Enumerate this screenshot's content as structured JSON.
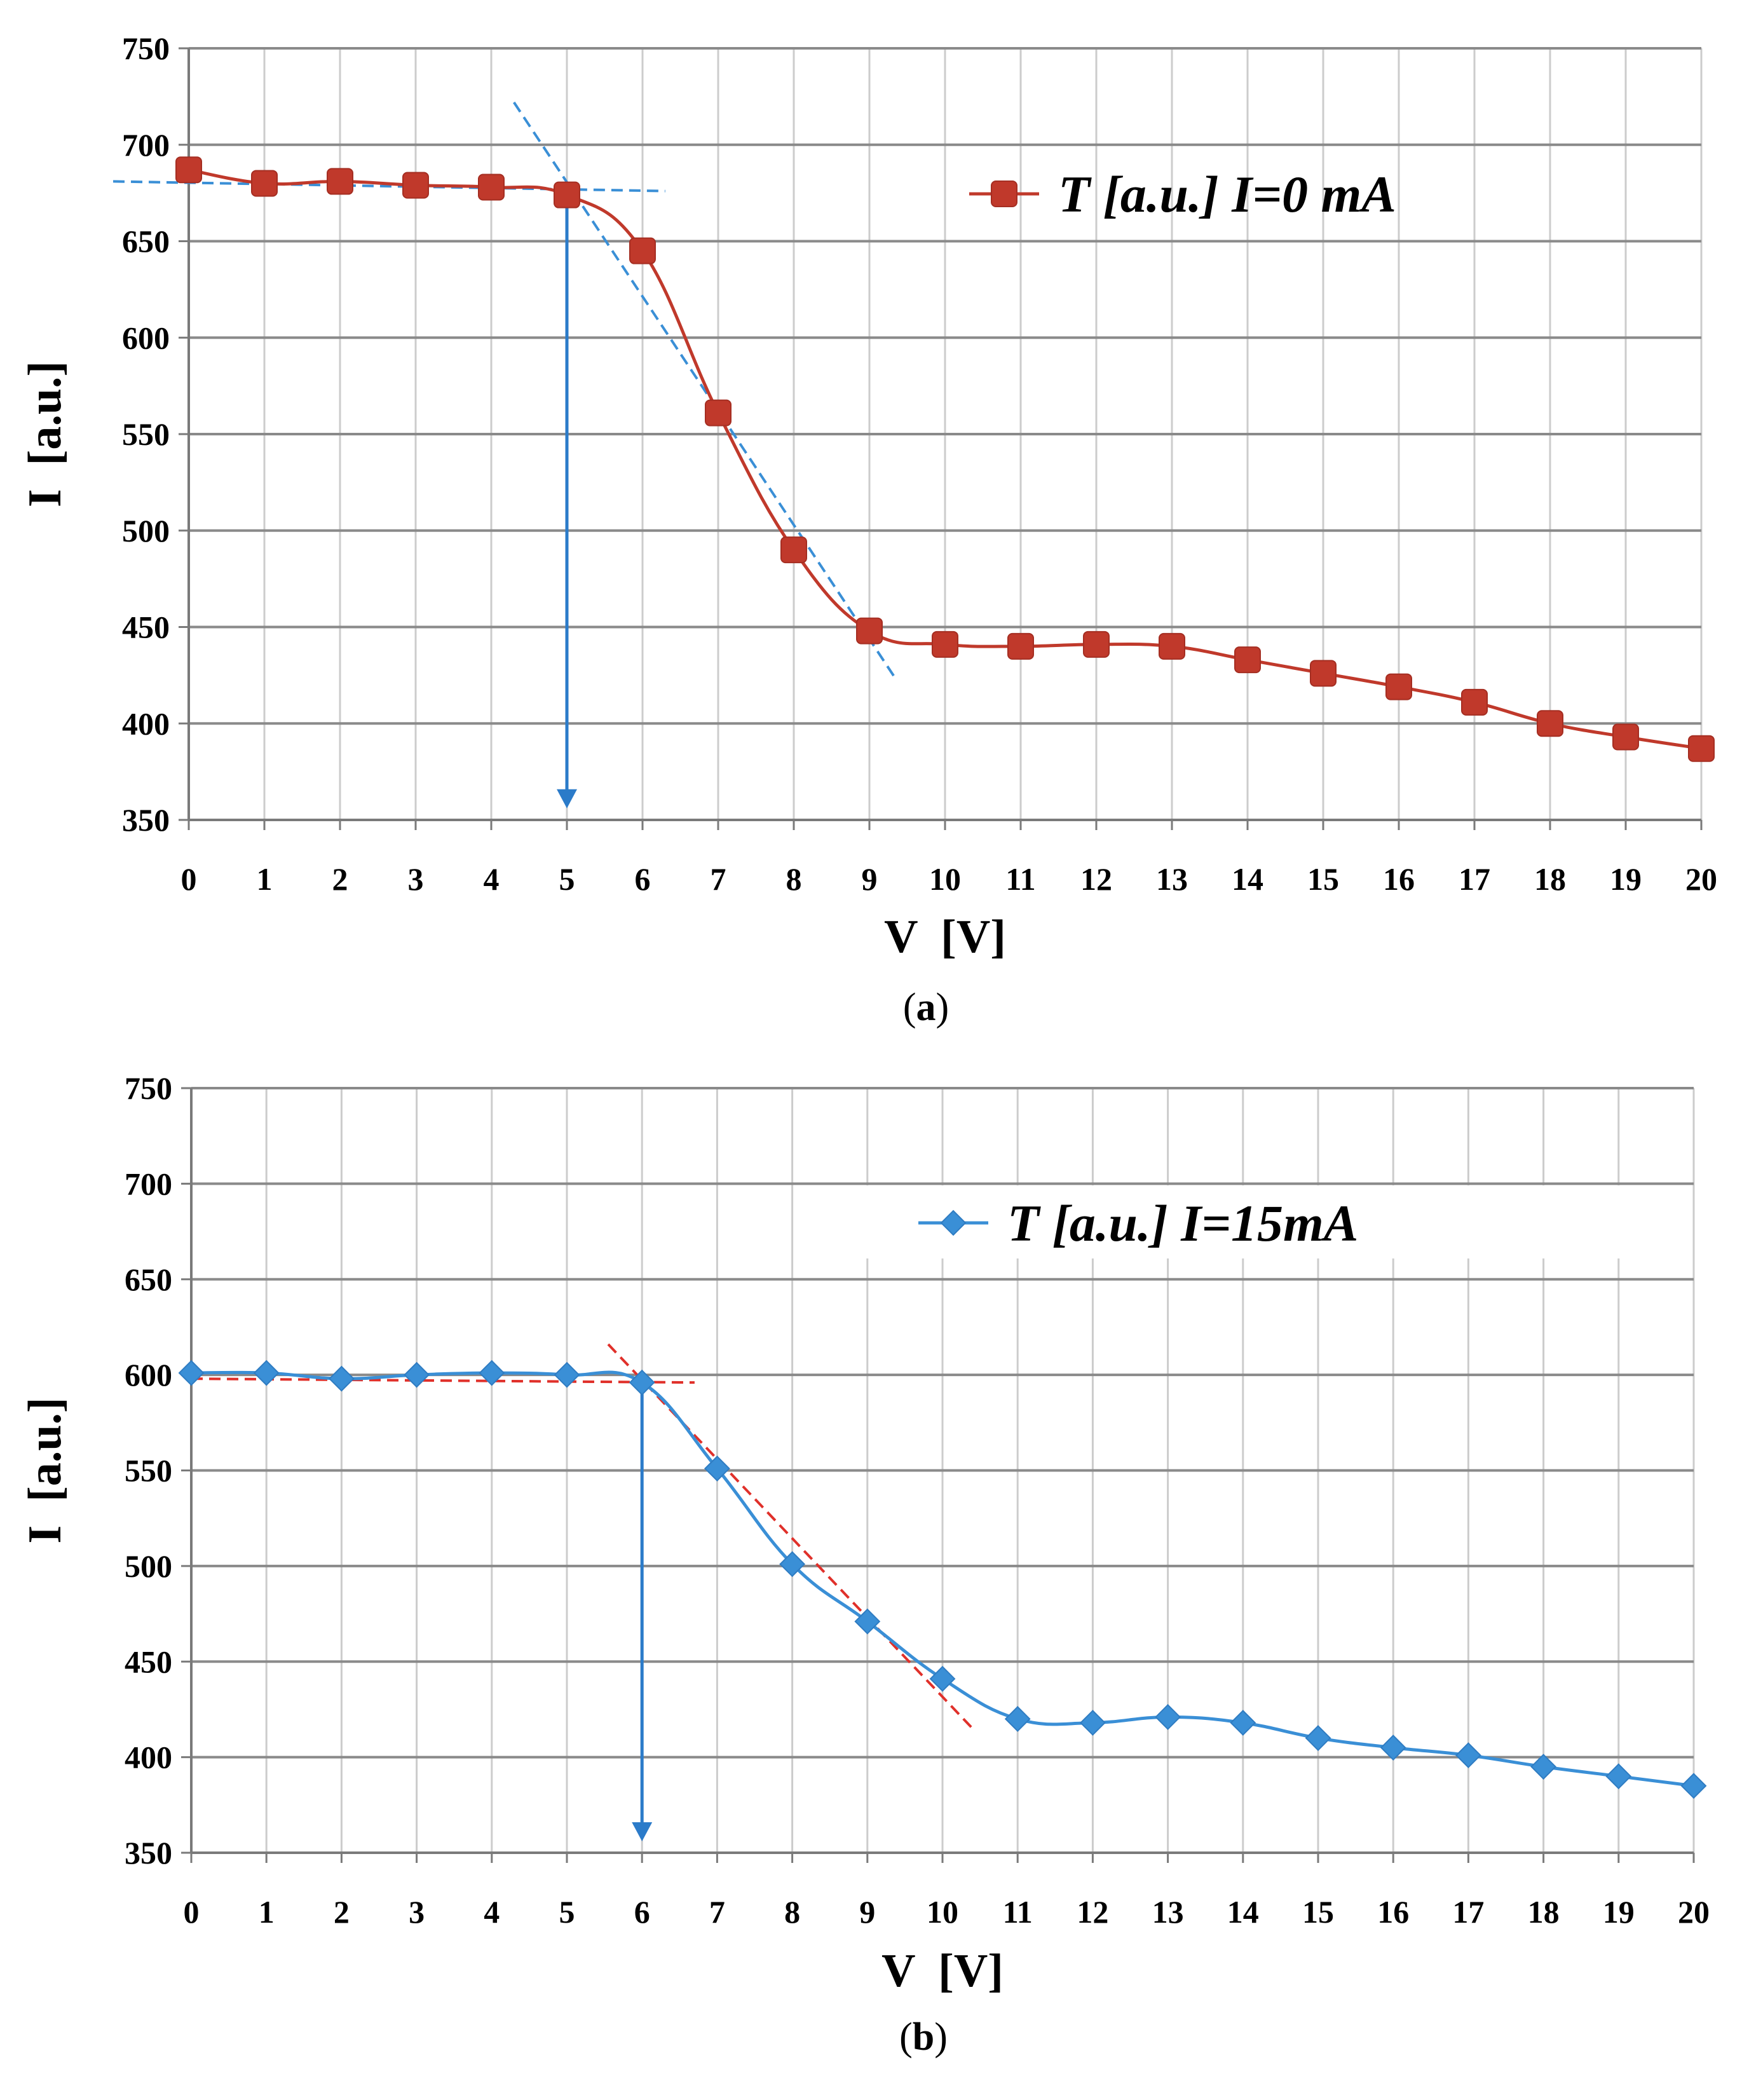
{
  "chart_data": [
    {
      "type": "line",
      "panel_label": "a",
      "caption": {
        "open": "(",
        "letter": "a",
        "close": ")"
      },
      "xlabel": "V  [V]",
      "ylabel": "I  [a.u.]",
      "xlim": [
        0,
        20
      ],
      "ylim": [
        350,
        750
      ],
      "xticks": [
        0,
        1,
        2,
        3,
        4,
        5,
        6,
        7,
        8,
        9,
        10,
        11,
        12,
        13,
        14,
        15,
        16,
        17,
        18,
        19,
        20
      ],
      "yticks": [
        350,
        400,
        450,
        500,
        550,
        600,
        650,
        700,
        750
      ],
      "grid": true,
      "legend_position": "top-right",
      "series": [
        {
          "name": "T [a.u.] I=0 mA",
          "color": "#c0392b",
          "marker": "square",
          "x": [
            0,
            1,
            2,
            3,
            4,
            5,
            6,
            7,
            8,
            9,
            10,
            11,
            12,
            13,
            14,
            15,
            16,
            17,
            18,
            19,
            20
          ],
          "values": [
            687,
            680,
            681,
            679,
            678,
            674,
            645,
            561,
            490,
            448,
            441,
            440,
            441,
            440,
            433,
            426,
            419,
            411,
            400,
            393,
            387
          ]
        }
      ],
      "annotations": [
        {
          "type": "dashed-line",
          "color": "#3a8fd6",
          "from": [
            -1.0,
            681
          ],
          "to": [
            6.3,
            676
          ],
          "label": "plateau fit"
        },
        {
          "type": "dashed-line",
          "color": "#3a8fd6",
          "from": [
            4.3,
            722
          ],
          "to": [
            9.35,
            423
          ],
          "label": "slope fit"
        },
        {
          "type": "arrow",
          "color": "#2b7bc9",
          "from": [
            5.0,
            676
          ],
          "to": [
            5.0,
            356
          ],
          "label": "threshold V=5"
        }
      ]
    },
    {
      "type": "line",
      "panel_label": "b",
      "caption": {
        "open": "(",
        "letter": "b",
        "close": ")"
      },
      "xlabel": "V  [V]",
      "ylabel": "I  [a.u.]",
      "xlim": [
        0,
        20
      ],
      "ylim": [
        350,
        750
      ],
      "xticks": [
        0,
        1,
        2,
        3,
        4,
        5,
        6,
        7,
        8,
        9,
        10,
        11,
        12,
        13,
        14,
        15,
        16,
        17,
        18,
        19,
        20
      ],
      "yticks": [
        350,
        400,
        450,
        500,
        550,
        600,
        650,
        700,
        750
      ],
      "grid": true,
      "legend_position": "top-right",
      "series": [
        {
          "name": "T [a.u.] I=15mA",
          "color": "#3a8fd6",
          "marker": "diamond",
          "x": [
            0,
            1,
            2,
            3,
            4,
            5,
            6,
            7,
            8,
            9,
            10,
            11,
            12,
            13,
            14,
            15,
            16,
            17,
            18,
            19,
            20
          ],
          "values": [
            601,
            601,
            598,
            600,
            601,
            600,
            596,
            551,
            501,
            471,
            441,
            420,
            418,
            421,
            418,
            410,
            405,
            401,
            395,
            390,
            385
          ]
        }
      ],
      "annotations": [
        {
          "type": "dashed-line",
          "color": "#e0302a",
          "from": [
            0.0,
            598
          ],
          "to": [
            6.7,
            596
          ],
          "label": "plateau fit"
        },
        {
          "type": "dashed-line",
          "color": "#e0302a",
          "from": [
            5.55,
            616
          ],
          "to": [
            10.4,
            415
          ],
          "label": "slope fit"
        },
        {
          "type": "arrow",
          "color": "#2b7bc9",
          "from": [
            6.0,
            596
          ],
          "to": [
            6.0,
            356
          ],
          "label": "threshold V=6"
        }
      ]
    }
  ]
}
